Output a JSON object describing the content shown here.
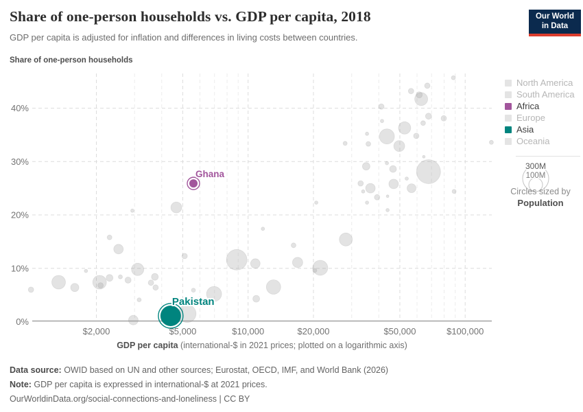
{
  "header": {
    "title": "Share of one-person households vs. GDP per capita, 2018",
    "subtitle": "GDP per capita is adjusted for inflation and differences in living costs between countries.",
    "logo": {
      "line1": "Our World",
      "line2": "in Data",
      "navy": "#0b2a4e",
      "red": "#dc3d2e"
    }
  },
  "chart_data": {
    "type": "scatter",
    "title": "Share of one-person households vs. GDP per capita, 2018",
    "ylabel": "Share of one-person households",
    "xlabel_bold": "GDP per capita",
    "xlabel_rest": " (international-$ in 2021 prices; plotted on a logarithmic axis)",
    "x_scale": "log",
    "xlim": [
      1000,
      133000
    ],
    "ylim": [
      0,
      46.5
    ],
    "grid": "dashed",
    "x_ticks": [
      {
        "value": 2000,
        "label": "$2,000"
      },
      {
        "value": 5000,
        "label": "$5,000"
      },
      {
        "value": 10000,
        "label": "$10,000"
      },
      {
        "value": 20000,
        "label": "$20,000"
      },
      {
        "value": 50000,
        "label": "$50,000"
      },
      {
        "value": 100000,
        "label": "$100,000"
      }
    ],
    "x_minor_ticks": [
      3000,
      4000,
      6000,
      7000,
      8000,
      9000,
      30000,
      40000,
      60000,
      70000,
      80000,
      90000
    ],
    "y_ticks": [
      {
        "value": 0,
        "label": "0%"
      },
      {
        "value": 10,
        "label": "10%"
      },
      {
        "value": 20,
        "label": "20%"
      },
      {
        "value": 30,
        "label": "30%"
      },
      {
        "value": 40,
        "label": "40%"
      }
    ],
    "highlighted": [
      {
        "name": "Ghana",
        "continent": "Africa",
        "color": "#a2559c",
        "gdp": 5600,
        "share": 25.9,
        "radius_px": 6
      },
      {
        "name": "Pakistan",
        "continent": "Asia",
        "color": "#00847e",
        "gdp": 4400,
        "share": 1.1,
        "radius_px": 15
      }
    ],
    "background_points": {
      "columns": [
        "gdp_intl_dollars",
        "share_pct",
        "radius_px"
      ],
      "rows": [
        [
          1000,
          6.0,
          4
        ],
        [
          1340,
          7.4,
          10
        ],
        [
          1590,
          6.4,
          6
        ],
        [
          2070,
          7.4,
          10
        ],
        [
          2090,
          6.8,
          4
        ],
        [
          2300,
          8.2,
          5
        ],
        [
          1790,
          9.5,
          2.5
        ],
        [
          2300,
          15.8,
          3.5
        ],
        [
          2530,
          13.6,
          7
        ],
        [
          2580,
          8.4,
          3
        ],
        [
          2800,
          7.8,
          4.5
        ],
        [
          2930,
          20.8,
          2.5
        ],
        [
          2960,
          0.3,
          7
        ],
        [
          3100,
          9.8,
          9
        ],
        [
          3150,
          4.1,
          3
        ],
        [
          3570,
          7.3,
          4
        ],
        [
          3750,
          6.4,
          4
        ],
        [
          3720,
          8.4,
          5
        ],
        [
          4670,
          21.4,
          8
        ],
        [
          5100,
          12.3,
          4
        ],
        [
          5600,
          5.9,
          3
        ],
        [
          6970,
          5.2,
          11
        ],
        [
          5240,
          1.5,
          13
        ],
        [
          8860,
          11.6,
          15
        ],
        [
          10800,
          10.9,
          7
        ],
        [
          10900,
          4.3,
          5
        ],
        [
          11700,
          17.4,
          2.5
        ],
        [
          16200,
          14.3,
          3.5
        ],
        [
          28200,
          15.4,
          9.5
        ],
        [
          16900,
          11.1,
          7.5
        ],
        [
          21500,
          10.1,
          11
        ],
        [
          20300,
          9.6,
          3
        ],
        [
          13100,
          6.5,
          10.5
        ],
        [
          20600,
          22.3,
          2.5
        ],
        [
          35300,
          35.2,
          2.5
        ],
        [
          28000,
          33.4,
          3
        ],
        [
          35800,
          33.3,
          3.5
        ],
        [
          41100,
          40.3,
          4
        ],
        [
          41400,
          37.6,
          2.5
        ],
        [
          43600,
          34.7,
          11
        ],
        [
          49700,
          32.9,
          8
        ],
        [
          52600,
          36.3,
          9
        ],
        [
          59500,
          34.8,
          4
        ],
        [
          56300,
          43.2,
          4
        ],
        [
          62700,
          41.7,
          9.5
        ],
        [
          61400,
          42.5,
          4.5
        ],
        [
          66900,
          44.2,
          4
        ],
        [
          88200,
          45.7,
          3
        ],
        [
          67800,
          38.5,
          4.5
        ],
        [
          79700,
          38.1,
          4
        ],
        [
          64000,
          37.2,
          3.5
        ],
        [
          132000,
          33.6,
          3
        ],
        [
          35000,
          29.1,
          5.5
        ],
        [
          43600,
          29.7,
          2.5
        ],
        [
          46500,
          28.6,
          5
        ],
        [
          53800,
          26.8,
          2.5
        ],
        [
          67800,
          28.1,
          17.5
        ],
        [
          46800,
          25.8,
          7
        ],
        [
          56600,
          25.0,
          6.5
        ],
        [
          33000,
          25.9,
          4
        ],
        [
          36600,
          25.0,
          7
        ],
        [
          33900,
          24.4,
          2.5
        ],
        [
          39300,
          23.3,
          4
        ],
        [
          43900,
          23.5,
          2
        ],
        [
          88900,
          24.4,
          3
        ],
        [
          35300,
          22.3,
          2.5
        ],
        [
          43900,
          20.9,
          2.5
        ],
        [
          64500,
          30.9,
          2
        ]
      ]
    }
  },
  "legend": {
    "inactive_color": "#e4e4e4",
    "items": [
      {
        "label": "North America",
        "active": false,
        "color": "#e4e4e4"
      },
      {
        "label": "South America",
        "active": false,
        "color": "#e4e4e4"
      },
      {
        "label": "Africa",
        "active": true,
        "color": "#a2559c"
      },
      {
        "label": "Europe",
        "active": false,
        "color": "#e4e4e4"
      },
      {
        "label": "Asia",
        "active": true,
        "color": "#00847e"
      },
      {
        "label": "Oceania",
        "active": false,
        "color": "#e4e4e4"
      }
    ],
    "size_legend": {
      "big_label": "300M",
      "small_label": "100M",
      "caption_line1": "Circles sized by",
      "caption_line2": "Population"
    }
  },
  "footer": {
    "source_label": "Data source:",
    "source_text": " OWID based on UN and other sources; Eurostat, OECD, IMF, and World Bank (2026)",
    "note_label": "Note:",
    "note_text": " GDP per capita is expressed in international-$ at 2021 prices.",
    "url": "OurWorldinData.org/social-connections-and-loneliness | CC BY"
  }
}
